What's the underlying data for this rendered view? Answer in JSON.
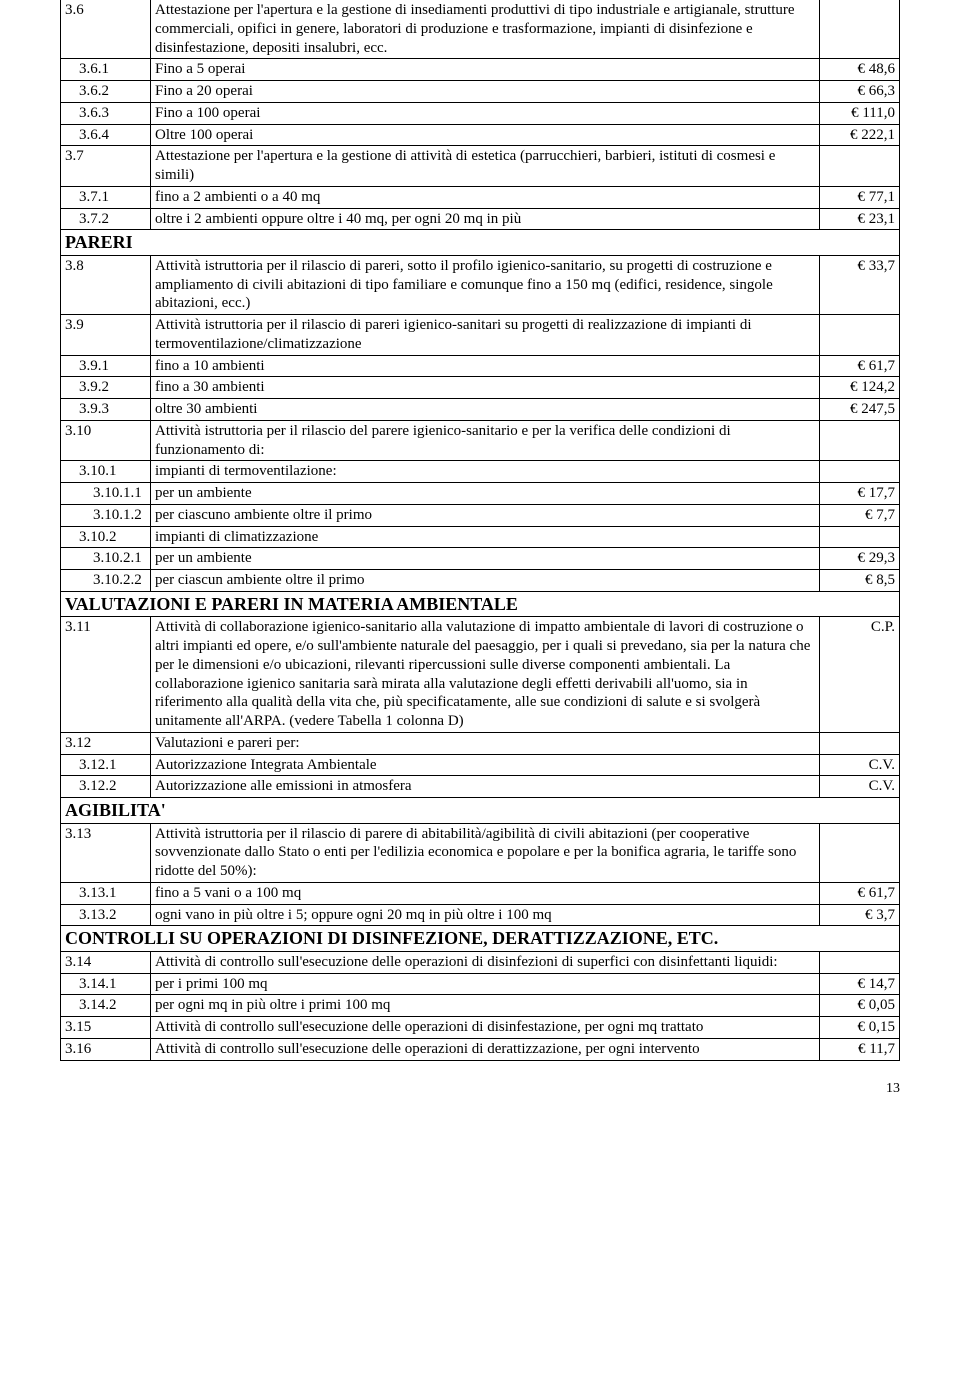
{
  "rows": [
    {
      "code": "3.6",
      "desc": "Attestazione per l'apertura e la gestione di insediamenti produttivi di tipo industriale e artigianale, strutture commerciali, opifici in genere, laboratori di produzione e trasformazione, impianti di disinfezione e disinfestazione, depositi insalubri, ecc.",
      "val": "",
      "truncTop": true
    },
    {
      "code": "3.6.1",
      "desc": "Fino a 5 operai",
      "val": "€ 48,6",
      "indent": 1
    },
    {
      "code": "3.6.2",
      "desc": "Fino a 20 operai",
      "val": "€ 66,3",
      "indent": 1
    },
    {
      "code": "3.6.3",
      "desc": "Fino a 100 operai",
      "val": "€ 111,0",
      "indent": 1
    },
    {
      "code": "3.6.4",
      "desc": "Oltre 100 operai",
      "val": "€ 222,1",
      "indent": 1
    },
    {
      "code": "3.7",
      "desc": "Attestazione per l'apertura e la gestione di attività di estetica (parrucchieri, barbieri, istituti di cosmesi e simili)",
      "val": ""
    },
    {
      "code": "3.7.1",
      "desc": "fino a 2 ambienti o a 40 mq",
      "val": "€ 77,1",
      "indent": 1
    },
    {
      "code": "3.7.2",
      "desc": "oltre i 2 ambienti oppure oltre i 40 mq, per ogni 20 mq in più",
      "val": "€ 23,1",
      "indent": 1
    },
    {
      "header": "PARERI"
    },
    {
      "code": "3.8",
      "desc": "Attività istruttoria per il rilascio di pareri, sotto il profilo igienico-sanitario, su progetti di costruzione e ampliamento di civili abitazioni di tipo familiare e comunque fino a 150 mq (edifici, residence, singole abitazioni, ecc.)",
      "val": "€ 33,7"
    },
    {
      "code": "3.9",
      "desc": "Attività istruttoria per il rilascio di pareri igienico-sanitari su progetti di realizzazione di impianti di termoventilazione/climatizzazione",
      "val": ""
    },
    {
      "code": "3.9.1",
      "desc": "fino a 10 ambienti",
      "val": "€ 61,7",
      "indent": 1
    },
    {
      "code": "3.9.2",
      "desc": "fino a 30 ambienti",
      "val": "€ 124,2",
      "indent": 1
    },
    {
      "code": "3.9.3",
      "desc": "oltre 30 ambienti",
      "val": "€ 247,5",
      "indent": 1
    },
    {
      "code": "3.10",
      "desc": "Attività istruttoria per il rilascio del parere igienico-sanitario e per la verifica delle condizioni di funzionamento di:",
      "val": ""
    },
    {
      "code": "3.10.1",
      "desc": "impianti di termoventilazione:",
      "val": "",
      "indent": 1
    },
    {
      "code": "3.10.1.1",
      "desc": "per un ambiente",
      "val": "€ 17,7",
      "indent": 2
    },
    {
      "code": "3.10.1.2",
      "desc": "per ciascuno ambiente oltre il primo",
      "val": "€ 7,7",
      "indent": 2
    },
    {
      "code": "3.10.2",
      "desc": "impianti di climatizzazione",
      "val": "",
      "indent": 1
    },
    {
      "code": "3.10.2.1",
      "desc": "per un ambiente",
      "val": "€ 29,3",
      "indent": 2
    },
    {
      "code": "3.10.2.2",
      "desc": "per ciascun ambiente oltre il primo",
      "val": "€ 8,5",
      "indent": 2
    },
    {
      "header": "VALUTAZIONI E PARERI IN MATERIA AMBIENTALE"
    },
    {
      "code": "3.11",
      "desc": "Attività di collaborazione igienico-sanitario alla valutazione di impatto ambientale di lavori di costruzione o altri impianti ed opere, e/o sull'ambiente naturale del paesaggio, per i quali si prevedano, sia per la natura che per le dimensioni e/o ubicazioni, rilevanti ripercussioni sulle diverse componenti ambientali. La collaborazione igienico sanitaria sarà mirata alla valutazione degli effetti derivabili all'uomo, sia in riferimento alla qualità della vita che, più specificatamente, alle sue condizioni di salute e si svolgerà unitamente all'ARPA. (vedere Tabella 1 colonna D)",
      "val": "C.P."
    },
    {
      "code": "3.12",
      "desc": "Valutazioni e pareri per:",
      "val": ""
    },
    {
      "code": "3.12.1",
      "desc": "Autorizzazione Integrata Ambientale",
      "val": "C.V.",
      "indent": 1
    },
    {
      "code": "3.12.2",
      "desc": "Autorizzazione alle emissioni in atmosfera",
      "val": "C.V.",
      "indent": 1
    },
    {
      "header": "AGIBILITA'"
    },
    {
      "code": "3.13",
      "desc": "Attività istruttoria per il rilascio di parere di abitabilità/agibilità di civili abitazioni (per cooperative sovvenzionate dallo Stato o enti per l'edilizia economica e popolare e per la bonifica agraria, le tariffe sono ridotte del 50%):",
      "val": ""
    },
    {
      "code": "3.13.1",
      "desc": "fino a 5 vani o a 100 mq",
      "val": "€ 61,7",
      "indent": 1
    },
    {
      "code": "3.13.2",
      "desc": "ogni vano in più oltre i 5; oppure ogni 20 mq in più oltre i 100 mq",
      "val": "€ 3,7",
      "indent": 1
    },
    {
      "header": "CONTROLLI SU OPERAZIONI DI DISINFEZIONE, DERATTIZZAZIONE, ETC."
    },
    {
      "code": "3.14",
      "desc": "Attività di controllo sull'esecuzione delle operazioni di disinfezioni di superfici con disinfettanti liquidi:",
      "val": ""
    },
    {
      "code": "3.14.1",
      "desc": "per i primi 100 mq",
      "val": "€ 14,7",
      "indent": 1
    },
    {
      "code": "3.14.2",
      "desc": "per ogni mq in più oltre i primi 100 mq",
      "val": "€ 0,05",
      "indent": 1
    },
    {
      "code": "3.15",
      "desc": "Attività di controllo sull'esecuzione delle operazioni di disinfestazione, per ogni mq trattato",
      "val": "€ 0,15"
    },
    {
      "code": "3.16",
      "desc": "Attività di controllo sull'esecuzione delle operazioni di derattizzazione, per ogni intervento",
      "val": "€ 11,7"
    }
  ],
  "pageNumber": "13",
  "indentPx": 14,
  "headerFontSize": 18
}
